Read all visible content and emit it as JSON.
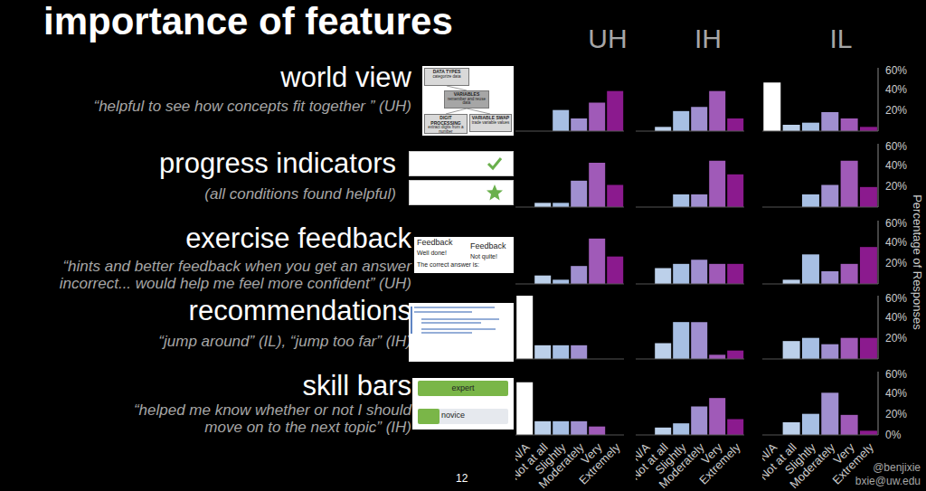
{
  "title": "importance of features",
  "conditions": [
    "UH",
    "IH",
    "IL"
  ],
  "y_axis_label": "Percentage of Responses",
  "page_number": "12",
  "credits": [
    "@benjixie",
    "bxie@uw.edu"
  ],
  "features": [
    {
      "name": "world view",
      "quote": [
        "“helpful to see how concepts fit together ” (UH)"
      ],
      "thumbnail": [
        [
          "DATA TYPES",
          "categorize data"
        ],
        [
          "VARIABLES",
          "remember and reuse data"
        ],
        [
          "DIGIT PROCESSING",
          "extract digits from a number"
        ],
        [
          "VARIABLE SWAP",
          "trade variable values"
        ]
      ]
    },
    {
      "name": "progress indicators",
      "quote": [
        "(all conditions found helpful)"
      ],
      "thumbnail": []
    },
    {
      "name": "exercise feedback",
      "quote": [
        "“hints and better feedback when you get an answer",
        "incorrect... would help me feel more confident” (UH)"
      ],
      "thumbnail": [
        [
          "Feedback",
          "Well done!",
          "The correct answer is:"
        ],
        [
          "Feedback",
          "Not quite!"
        ]
      ]
    },
    {
      "name": "recommendations",
      "quote": [
        "“jump around” (IL), “jump too far” (IH)"
      ],
      "thumbnail": []
    },
    {
      "name": "skill bars",
      "quote": [
        "“helped me know whether or not I should",
        "move on to the next topic” (IH)"
      ],
      "thumbnail": [
        [
          "expert"
        ],
        [
          "novice"
        ]
      ]
    }
  ],
  "chart_data": [
    {
      "type": "bar",
      "categories": [
        "N/A",
        "Not at all",
        "Slightly",
        "Moderately",
        "Very",
        "Extremely"
      ],
      "values": [
        0,
        0,
        20,
        12,
        27,
        38
      ],
      "colors": [
        "#ffffff",
        "#bcd0ea",
        "#a7bfe3",
        "#a08fd0",
        "#a05ab8",
        "#8b1a8e"
      ],
      "ylim": [
        0,
        60
      ],
      "yticks": [
        {
          "value": 0,
          "label": "0%"
        },
        {
          "value": 20,
          "label": "20%"
        },
        {
          "value": 40,
          "label": "40%"
        },
        {
          "value": 60,
          "label": "60%"
        }
      ],
      "tick_labels": false
    },
    {
      "type": "bar",
      "categories": [
        "N/A",
        "Not at all",
        "Slightly",
        "Moderately",
        "Very",
        "Extremely"
      ],
      "values": [
        0,
        4,
        19,
        23,
        38,
        12
      ],
      "colors": [
        "#ffffff",
        "#bcd0ea",
        "#a7bfe3",
        "#a08fd0",
        "#a05ab8",
        "#8b1a8e"
      ],
      "ylim": [
        0,
        60
      ],
      "yticks": [
        {
          "value": 0,
          "label": "0%"
        },
        {
          "value": 20,
          "label": "20%"
        },
        {
          "value": 40,
          "label": "40%"
        },
        {
          "value": 60,
          "label": "60%"
        }
      ],
      "tick_labels": false
    },
    {
      "type": "bar",
      "categories": [
        "N/A",
        "Not at all",
        "Slightly",
        "Moderately",
        "Very",
        "Extremely"
      ],
      "values": [
        46,
        6,
        8,
        18,
        12,
        4
      ],
      "colors": [
        "#ffffff",
        "#bcd0ea",
        "#a7bfe3",
        "#a08fd0",
        "#a05ab8",
        "#8b1a8e"
      ],
      "ylim": [
        0,
        60
      ],
      "yticks": [
        {
          "value": 0,
          "label": "0%"
        },
        {
          "value": 20,
          "label": "20%"
        },
        {
          "value": 40,
          "label": "40%"
        },
        {
          "value": 60,
          "label": "60%"
        }
      ],
      "tick_labels": "y"
    },
    {
      "type": "bar",
      "categories": [
        "N/A",
        "Not at all",
        "Slightly",
        "Moderately",
        "Very",
        "Extremely"
      ],
      "values": [
        0,
        4,
        4,
        25,
        42,
        21
      ],
      "colors": [
        "#ffffff",
        "#bcd0ea",
        "#a7bfe3",
        "#a08fd0",
        "#a05ab8",
        "#8b1a8e"
      ],
      "ylim": [
        0,
        60
      ],
      "yticks": [
        {
          "value": 0,
          "label": "0%"
        },
        {
          "value": 20,
          "label": "20%"
        },
        {
          "value": 40,
          "label": "40%"
        },
        {
          "value": 60,
          "label": "60%"
        }
      ],
      "tick_labels": false
    },
    {
      "type": "bar",
      "categories": [
        "N/A",
        "Not at all",
        "Slightly",
        "Moderately",
        "Very",
        "Extremely"
      ],
      "values": [
        0,
        0,
        12,
        12,
        44,
        31
      ],
      "colors": [
        "#ffffff",
        "#bcd0ea",
        "#a7bfe3",
        "#a08fd0",
        "#a05ab8",
        "#8b1a8e"
      ],
      "ylim": [
        0,
        60
      ],
      "yticks": [
        {
          "value": 0,
          "label": "0%"
        },
        {
          "value": 20,
          "label": "20%"
        },
        {
          "value": 40,
          "label": "40%"
        },
        {
          "value": 60,
          "label": "60%"
        }
      ],
      "tick_labels": false
    },
    {
      "type": "bar",
      "categories": [
        "N/A",
        "Not at all",
        "Slightly",
        "Moderately",
        "Very",
        "Extremely"
      ],
      "values": [
        0,
        0,
        12,
        21,
        44,
        19
      ],
      "colors": [
        "#ffffff",
        "#bcd0ea",
        "#a7bfe3",
        "#a08fd0",
        "#a05ab8",
        "#8b1a8e"
      ],
      "ylim": [
        0,
        60
      ],
      "yticks": [
        {
          "value": 0,
          "label": "0%"
        },
        {
          "value": 20,
          "label": "20%"
        },
        {
          "value": 40,
          "label": "40%"
        },
        {
          "value": 60,
          "label": "60%"
        }
      ],
      "tick_labels": "y"
    },
    {
      "type": "bar",
      "categories": [
        "N/A",
        "Not at all",
        "Slightly",
        "Moderately",
        "Very",
        "Extremely"
      ],
      "values": [
        0,
        8,
        4,
        17,
        43,
        26
      ],
      "colors": [
        "#ffffff",
        "#bcd0ea",
        "#a7bfe3",
        "#a08fd0",
        "#a05ab8",
        "#8b1a8e"
      ],
      "ylim": [
        0,
        60
      ],
      "yticks": [
        {
          "value": 0,
          "label": "0%"
        },
        {
          "value": 20,
          "label": "20%"
        },
        {
          "value": 40,
          "label": "40%"
        },
        {
          "value": 60,
          "label": "60%"
        }
      ],
      "tick_labels": false
    },
    {
      "type": "bar",
      "categories": [
        "N/A",
        "Not at all",
        "Slightly",
        "Moderately",
        "Very",
        "Extremely"
      ],
      "values": [
        0,
        15,
        19,
        23,
        19,
        19
      ],
      "colors": [
        "#ffffff",
        "#bcd0ea",
        "#a7bfe3",
        "#a08fd0",
        "#a05ab8",
        "#8b1a8e"
      ],
      "ylim": [
        0,
        60
      ],
      "yticks": [
        {
          "value": 0,
          "label": "0%"
        },
        {
          "value": 20,
          "label": "20%"
        },
        {
          "value": 40,
          "label": "40%"
        },
        {
          "value": 60,
          "label": "60%"
        }
      ],
      "tick_labels": false
    },
    {
      "type": "bar",
      "categories": [
        "N/A",
        "Not at all",
        "Slightly",
        "Moderately",
        "Very",
        "Extremely"
      ],
      "values": [
        0,
        4,
        28,
        12,
        19,
        35
      ],
      "colors": [
        "#ffffff",
        "#bcd0ea",
        "#a7bfe3",
        "#a08fd0",
        "#a05ab8",
        "#8b1a8e"
      ],
      "ylim": [
        0,
        60
      ],
      "yticks": [
        {
          "value": 0,
          "label": "0%"
        },
        {
          "value": 20,
          "label": "20%"
        },
        {
          "value": 40,
          "label": "40%"
        },
        {
          "value": 60,
          "label": "60%"
        }
      ],
      "tick_labels": "y"
    },
    {
      "type": "bar",
      "categories": [
        "N/A",
        "Not at all",
        "Slightly",
        "Moderately",
        "Very",
        "Extremely"
      ],
      "values": [
        60,
        13,
        13,
        13,
        0,
        0
      ],
      "colors": [
        "#ffffff",
        "#bcd0ea",
        "#a7bfe3",
        "#a08fd0",
        "#a05ab8",
        "#8b1a8e"
      ],
      "ylim": [
        0,
        60
      ],
      "yticks": [
        {
          "value": 0,
          "label": "0%"
        },
        {
          "value": 20,
          "label": "20%"
        },
        {
          "value": 40,
          "label": "40%"
        },
        {
          "value": 60,
          "label": "60%"
        }
      ],
      "tick_labels": false
    },
    {
      "type": "bar",
      "categories": [
        "N/A",
        "Not at all",
        "Slightly",
        "Moderately",
        "Very",
        "Extremely"
      ],
      "values": [
        0,
        15,
        35,
        35,
        4,
        8
      ],
      "colors": [
        "#ffffff",
        "#bcd0ea",
        "#a7bfe3",
        "#a08fd0",
        "#a05ab8",
        "#8b1a8e"
      ],
      "ylim": [
        0,
        60
      ],
      "yticks": [
        {
          "value": 0,
          "label": "0%"
        },
        {
          "value": 20,
          "label": "20%"
        },
        {
          "value": 40,
          "label": "40%"
        },
        {
          "value": 60,
          "label": "60%"
        }
      ],
      "tick_labels": false
    },
    {
      "type": "bar",
      "categories": [
        "N/A",
        "Not at all",
        "Slightly",
        "Moderately",
        "Very",
        "Extremely"
      ],
      "values": [
        0,
        17,
        20,
        14,
        20,
        20
      ],
      "colors": [
        "#ffffff",
        "#bcd0ea",
        "#a7bfe3",
        "#a08fd0",
        "#a05ab8",
        "#8b1a8e"
      ],
      "ylim": [
        0,
        60
      ],
      "yticks": [
        {
          "value": 0,
          "label": "0%"
        },
        {
          "value": 20,
          "label": "20%"
        },
        {
          "value": 40,
          "label": "40%"
        },
        {
          "value": 60,
          "label": "60%"
        }
      ],
      "tick_labels": "y"
    },
    {
      "type": "bar",
      "categories": [
        "N/A",
        "Not at all",
        "Slightly",
        "Moderately",
        "Very",
        "Extremely"
      ],
      "values": [
        50,
        13,
        13,
        13,
        8,
        0
      ],
      "colors": [
        "#ffffff",
        "#bcd0ea",
        "#a7bfe3",
        "#a08fd0",
        "#a05ab8",
        "#8b1a8e"
      ],
      "ylim": [
        0,
        60
      ],
      "yticks": [
        {
          "value": 0,
          "label": "0%"
        },
        {
          "value": 20,
          "label": "20%"
        },
        {
          "value": 40,
          "label": "40%"
        },
        {
          "value": 60,
          "label": "60%"
        }
      ],
      "tick_labels": "x"
    },
    {
      "type": "bar",
      "categories": [
        "N/A",
        "Not at all",
        "Slightly",
        "Moderately",
        "Very",
        "Extremely"
      ],
      "values": [
        0,
        7,
        11,
        27,
        35,
        15
      ],
      "colors": [
        "#ffffff",
        "#bcd0ea",
        "#a7bfe3",
        "#a08fd0",
        "#a05ab8",
        "#8b1a8e"
      ],
      "ylim": [
        0,
        60
      ],
      "yticks": [
        {
          "value": 0,
          "label": "0%"
        },
        {
          "value": 20,
          "label": "20%"
        },
        {
          "value": 40,
          "label": "40%"
        },
        {
          "value": 60,
          "label": "60%"
        }
      ],
      "tick_labels": "x"
    },
    {
      "type": "bar",
      "categories": [
        "N/A",
        "Not at all",
        "Slightly",
        "Moderately",
        "Very",
        "Extremely"
      ],
      "values": [
        0,
        12,
        20,
        40,
        19,
        4
      ],
      "colors": [
        "#ffffff",
        "#bcd0ea",
        "#a7bfe3",
        "#a08fd0",
        "#a05ab8",
        "#8b1a8e"
      ],
      "ylim": [
        0,
        60
      ],
      "yticks": [
        {
          "value": 0,
          "label": "0%"
        },
        {
          "value": 20,
          "label": "20%"
        },
        {
          "value": 40,
          "label": "40%"
        },
        {
          "value": 60,
          "label": "60%"
        }
      ],
      "tick_labels": true
    }
  ]
}
